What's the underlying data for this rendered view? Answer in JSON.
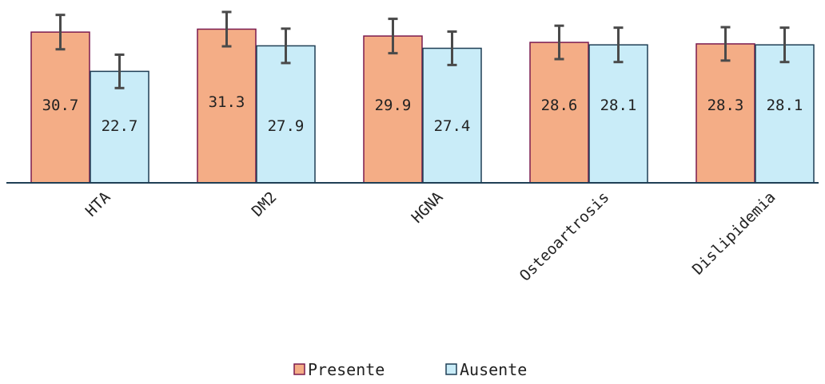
{
  "chart_data": {
    "type": "bar",
    "categories": [
      "HTA",
      "DM2",
      "HGNA",
      "Osteoartrosis",
      "Dislipidemia"
    ],
    "series": [
      {
        "name": "Presente",
        "values": [
          30.7,
          31.3,
          29.9,
          28.6,
          28.3
        ],
        "error": [
          3.5,
          3.5,
          3.5,
          3.4,
          3.4
        ],
        "color": "#f4ad86",
        "edge": "#7b1b4f"
      },
      {
        "name": "Ausente",
        "values": [
          22.7,
          27.9,
          27.4,
          28.1,
          28.1
        ],
        "error": [
          3.4,
          3.5,
          3.4,
          3.5,
          3.5
        ],
        "color": "#c9ecf8",
        "edge": "#1f3f55"
      }
    ],
    "xlabel": "",
    "ylabel": "",
    "ylim": [
      0,
      36.5
    ],
    "grid": false,
    "legend": "bottom-center",
    "data_labels": true
  }
}
